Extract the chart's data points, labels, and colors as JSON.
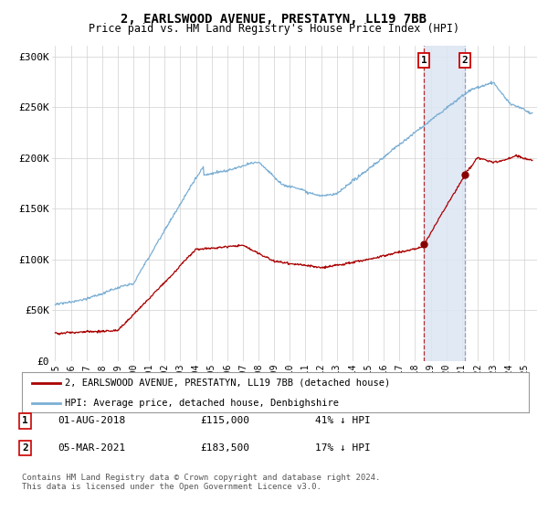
{
  "title": "2, EARLSWOOD AVENUE, PRESTATYN, LL19 7BB",
  "subtitle": "Price paid vs. HM Land Registry's House Price Index (HPI)",
  "ylabel_ticks": [
    "£0",
    "£50K",
    "£100K",
    "£150K",
    "£200K",
    "£250K",
    "£300K"
  ],
  "ytick_values": [
    0,
    50000,
    100000,
    150000,
    200000,
    250000,
    300000
  ],
  "ylim": [
    0,
    310000
  ],
  "xlim_start": 1994.8,
  "xlim_end": 2025.8,
  "hpi_color": "#7bafd4",
  "price_color": "#aa0000",
  "background_color": "#ffffff",
  "grid_color": "#d0d0d0",
  "shade_color": "#dce6f4",
  "transaction1_x": 2018.58,
  "transaction1_y": 115000,
  "transaction2_x": 2021.17,
  "transaction2_y": 183500,
  "transaction1_label": "01-AUG-2018",
  "transaction1_price": "£115,000",
  "transaction1_hpi": "41% ↓ HPI",
  "transaction2_label": "05-MAR-2021",
  "transaction2_price": "£183,500",
  "transaction2_hpi": "17% ↓ HPI",
  "legend_line1": "2, EARLSWOOD AVENUE, PRESTATYN, LL19 7BB (detached house)",
  "legend_line2": "HPI: Average price, detached house, Denbighshire",
  "footnote": "Contains HM Land Registry data © Crown copyright and database right 2024.\nThis data is licensed under the Open Government Licence v3.0."
}
